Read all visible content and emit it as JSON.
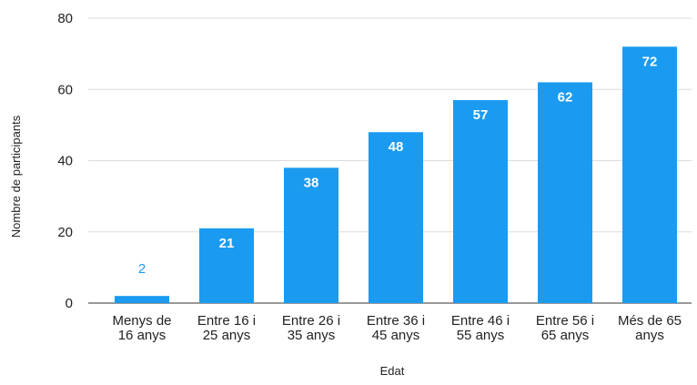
{
  "chart_data": {
    "type": "bar",
    "categories": [
      [
        "Menys de",
        "16 anys"
      ],
      [
        "Entre 16 i",
        "25 anys"
      ],
      [
        "Entre 26 i",
        "35 anys"
      ],
      [
        "Entre 36 i",
        "45 anys"
      ],
      [
        "Entre 46 i",
        "55 anys"
      ],
      [
        "Entre 56 i",
        "65 anys"
      ],
      [
        "Més de 65",
        "anys"
      ]
    ],
    "values": [
      2,
      21,
      38,
      48,
      57,
      62,
      72
    ],
    "title": "",
    "xlabel": "Edat",
    "ylabel": "Nombre de participants",
    "ylim": [
      0,
      80
    ],
    "yticks": [
      0,
      20,
      40,
      60,
      80
    ],
    "grid": true,
    "legend": "none",
    "bar_color": "#1a9bf0"
  }
}
